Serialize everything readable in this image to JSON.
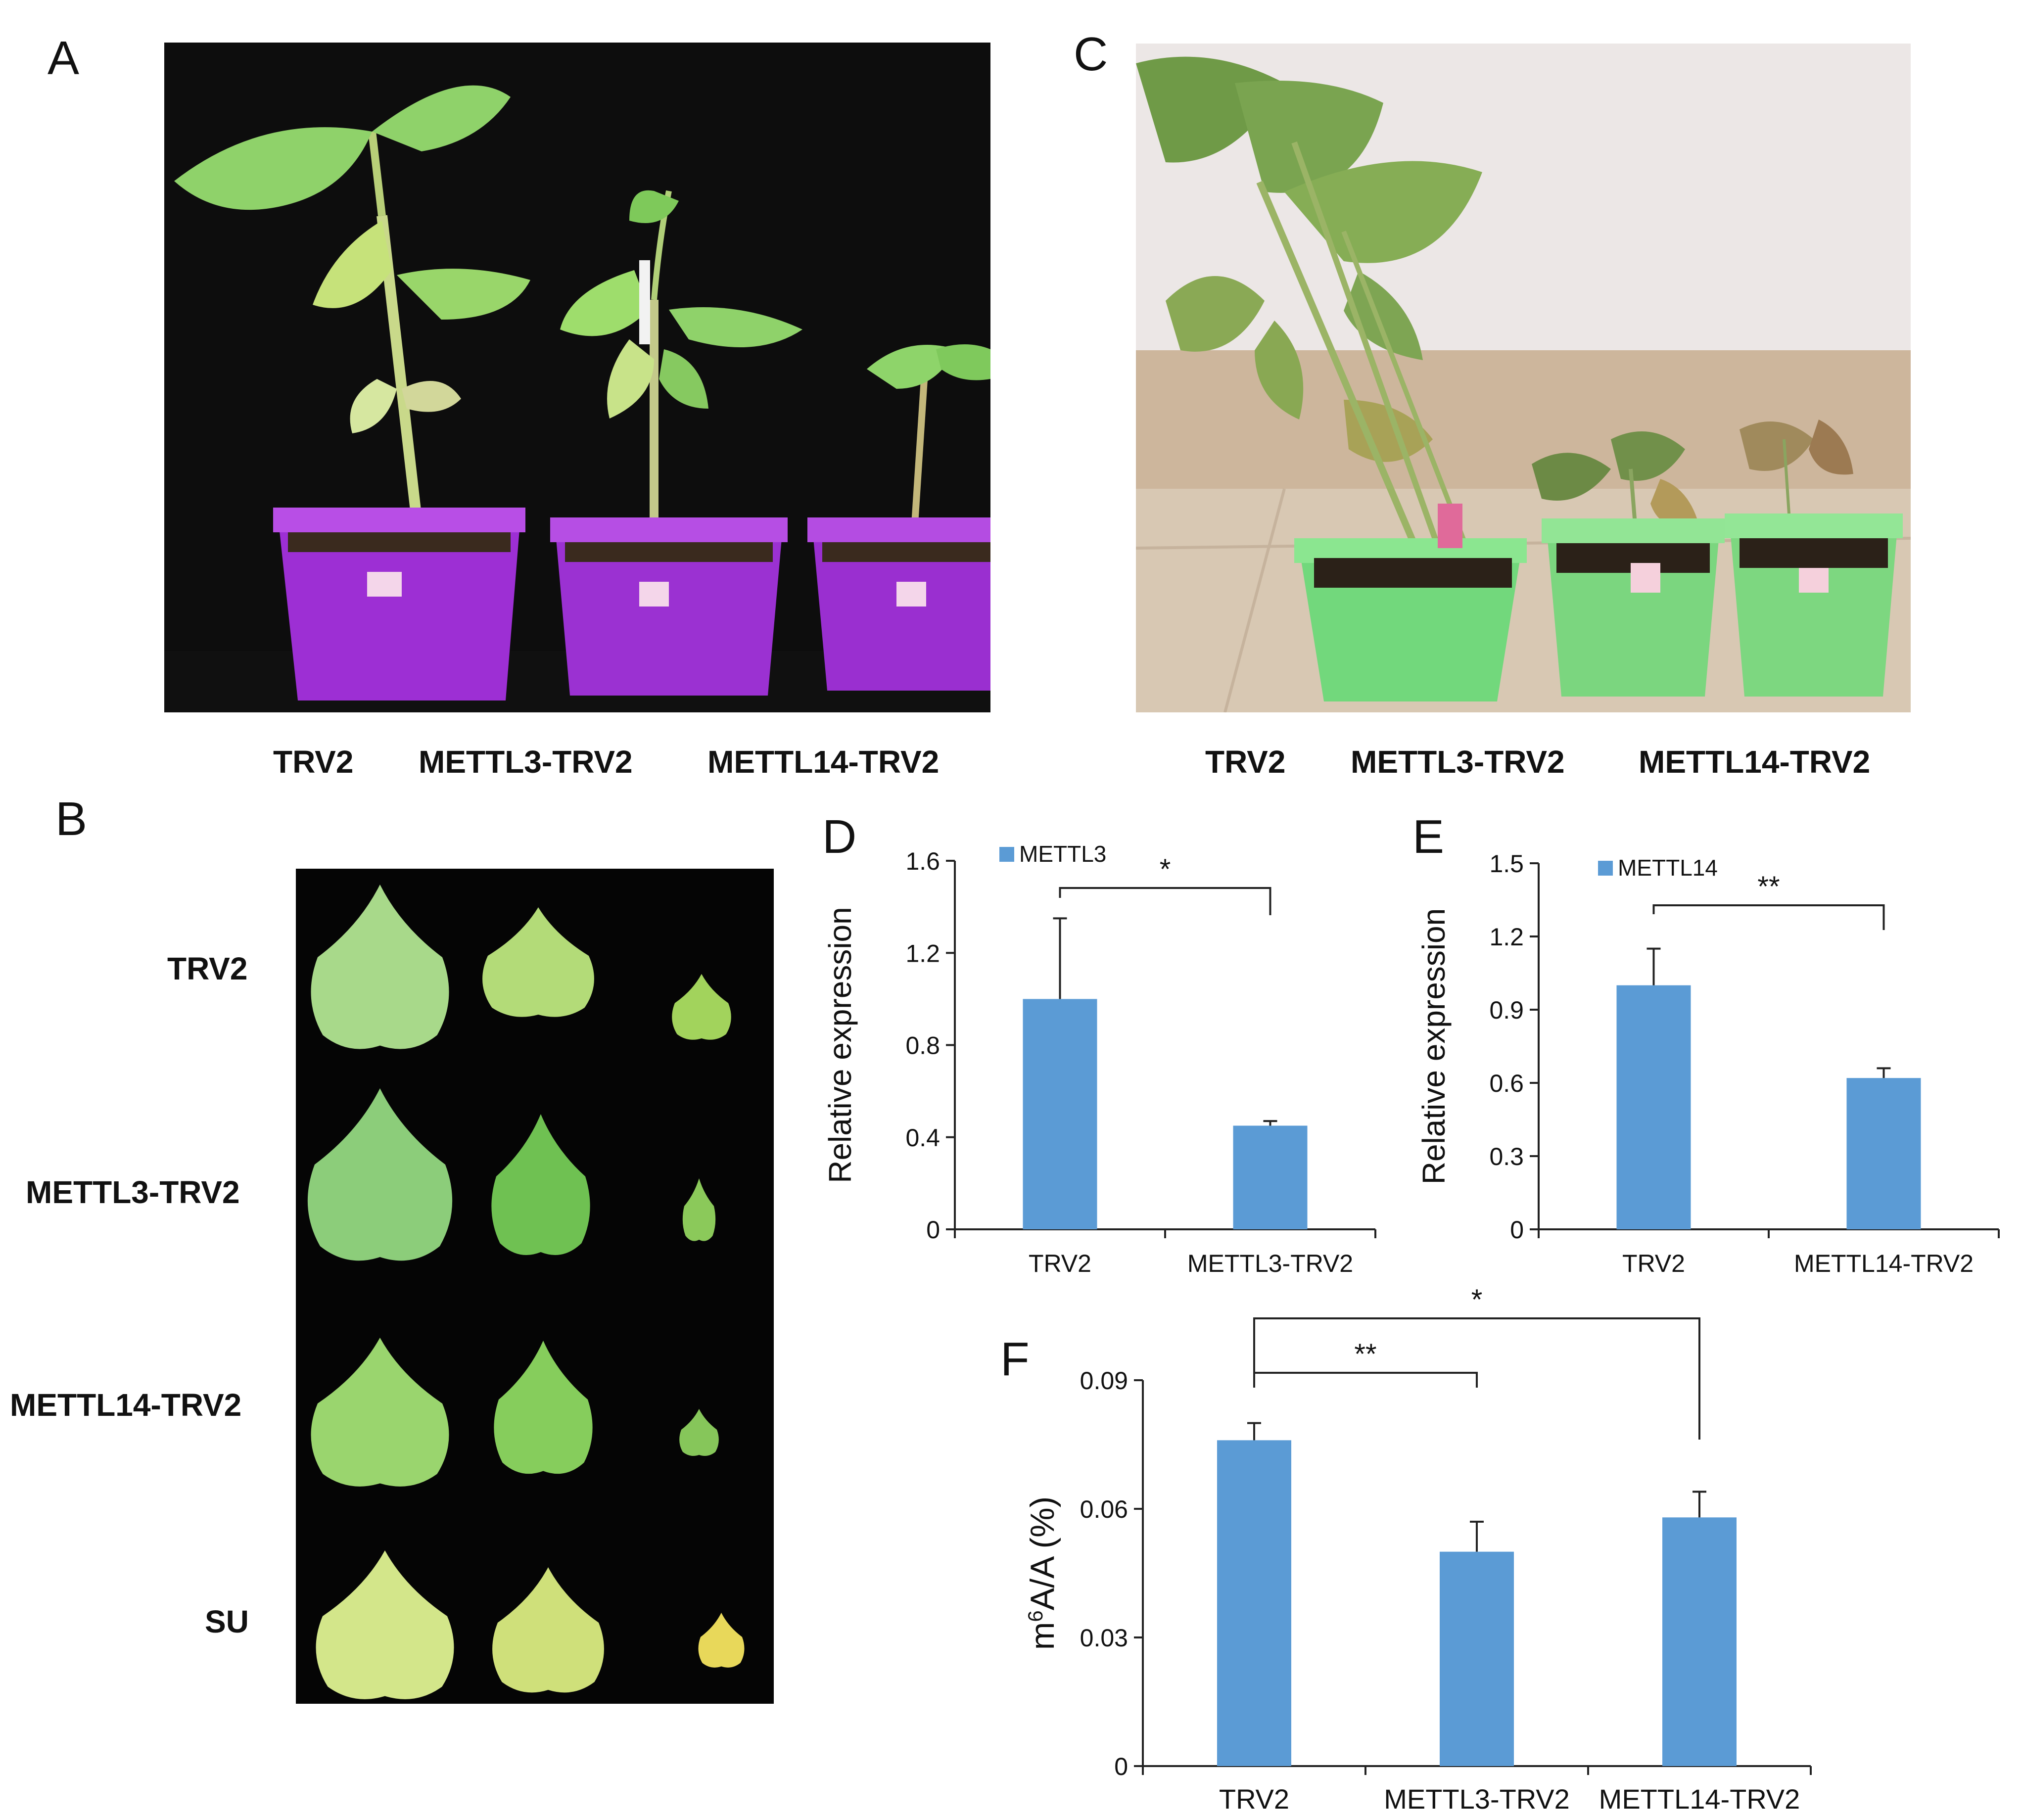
{
  "figure": {
    "panels": {
      "a": {
        "letter": "A",
        "labels": [
          "TRV2",
          "METTL3-TRV2",
          "METTL14-TRV2"
        ]
      },
      "b": {
        "letter": "B",
        "row_labels": [
          "TRV2",
          "METTL3-TRV2",
          "METTL14-TRV2",
          "SU"
        ]
      },
      "c": {
        "letter": "C",
        "labels": [
          "TRV2",
          "METTL3-TRV2",
          "METTL14-TRV2"
        ]
      },
      "d": {
        "letter": "D"
      },
      "e": {
        "letter": "E"
      },
      "f": {
        "letter": "F"
      }
    },
    "colors": {
      "bar": "#5B9BD5",
      "axis": "#222222",
      "pot_purple": "#9a2fd0",
      "pot_green": "#7bd67f",
      "leaf": "#9bd267",
      "black_bg": "#050505"
    }
  },
  "chart_data": [
    {
      "id": "D",
      "type": "bar",
      "categories": [
        "TRV2",
        "METTL3-TRV2"
      ],
      "series": [
        {
          "name": "METTL3",
          "values": [
            1.0,
            0.45
          ],
          "errors": [
            0.35,
            0.02
          ]
        }
      ],
      "ylabel": "Relative expression",
      "ylim": [
        0,
        1.6
      ],
      "yticks": [
        0,
        0.4,
        0.8,
        1.2,
        1.6
      ],
      "ytick_labels": [
        "0",
        "0.4",
        "0.8",
        "1.2",
        "1.6"
      ],
      "significance": [
        {
          "from": 0,
          "to": 1,
          "label": "*"
        }
      ],
      "legend": "top-left"
    },
    {
      "id": "E",
      "type": "bar",
      "categories": [
        "TRV2",
        "METTL14-TRV2"
      ],
      "series": [
        {
          "name": "METTL14",
          "values": [
            1.0,
            0.62
          ],
          "errors": [
            0.15,
            0.04
          ]
        }
      ],
      "ylabel": "Relative expression",
      "ylim": [
        0,
        1.5
      ],
      "yticks": [
        0,
        0.3,
        0.6,
        0.9,
        1.2,
        1.5
      ],
      "ytick_labels": [
        "0",
        "0.3",
        "0.6",
        "0.9",
        "1.2",
        "1.5"
      ],
      "significance": [
        {
          "from": 0,
          "to": 1,
          "label": "**"
        }
      ],
      "legend": "top-left"
    },
    {
      "id": "F",
      "type": "bar",
      "categories": [
        "TRV2",
        "METTL3-TRV2",
        "METTL14-TRV2"
      ],
      "series": [
        {
          "name": "",
          "values": [
            0.076,
            0.05,
            0.058
          ],
          "errors": [
            0.004,
            0.007,
            0.006
          ]
        }
      ],
      "ylabel_parts": [
        "m",
        "6",
        "A/A (%)"
      ],
      "ylim": [
        0,
        0.09
      ],
      "yticks": [
        0,
        0.03,
        0.06,
        0.09
      ],
      "ytick_labels": [
        "0",
        "0.03",
        "0.06",
        "0.09"
      ],
      "significance": [
        {
          "from": 0,
          "to": 1,
          "label": "**"
        },
        {
          "from": 0,
          "to": 2,
          "label": "*"
        }
      ]
    }
  ]
}
